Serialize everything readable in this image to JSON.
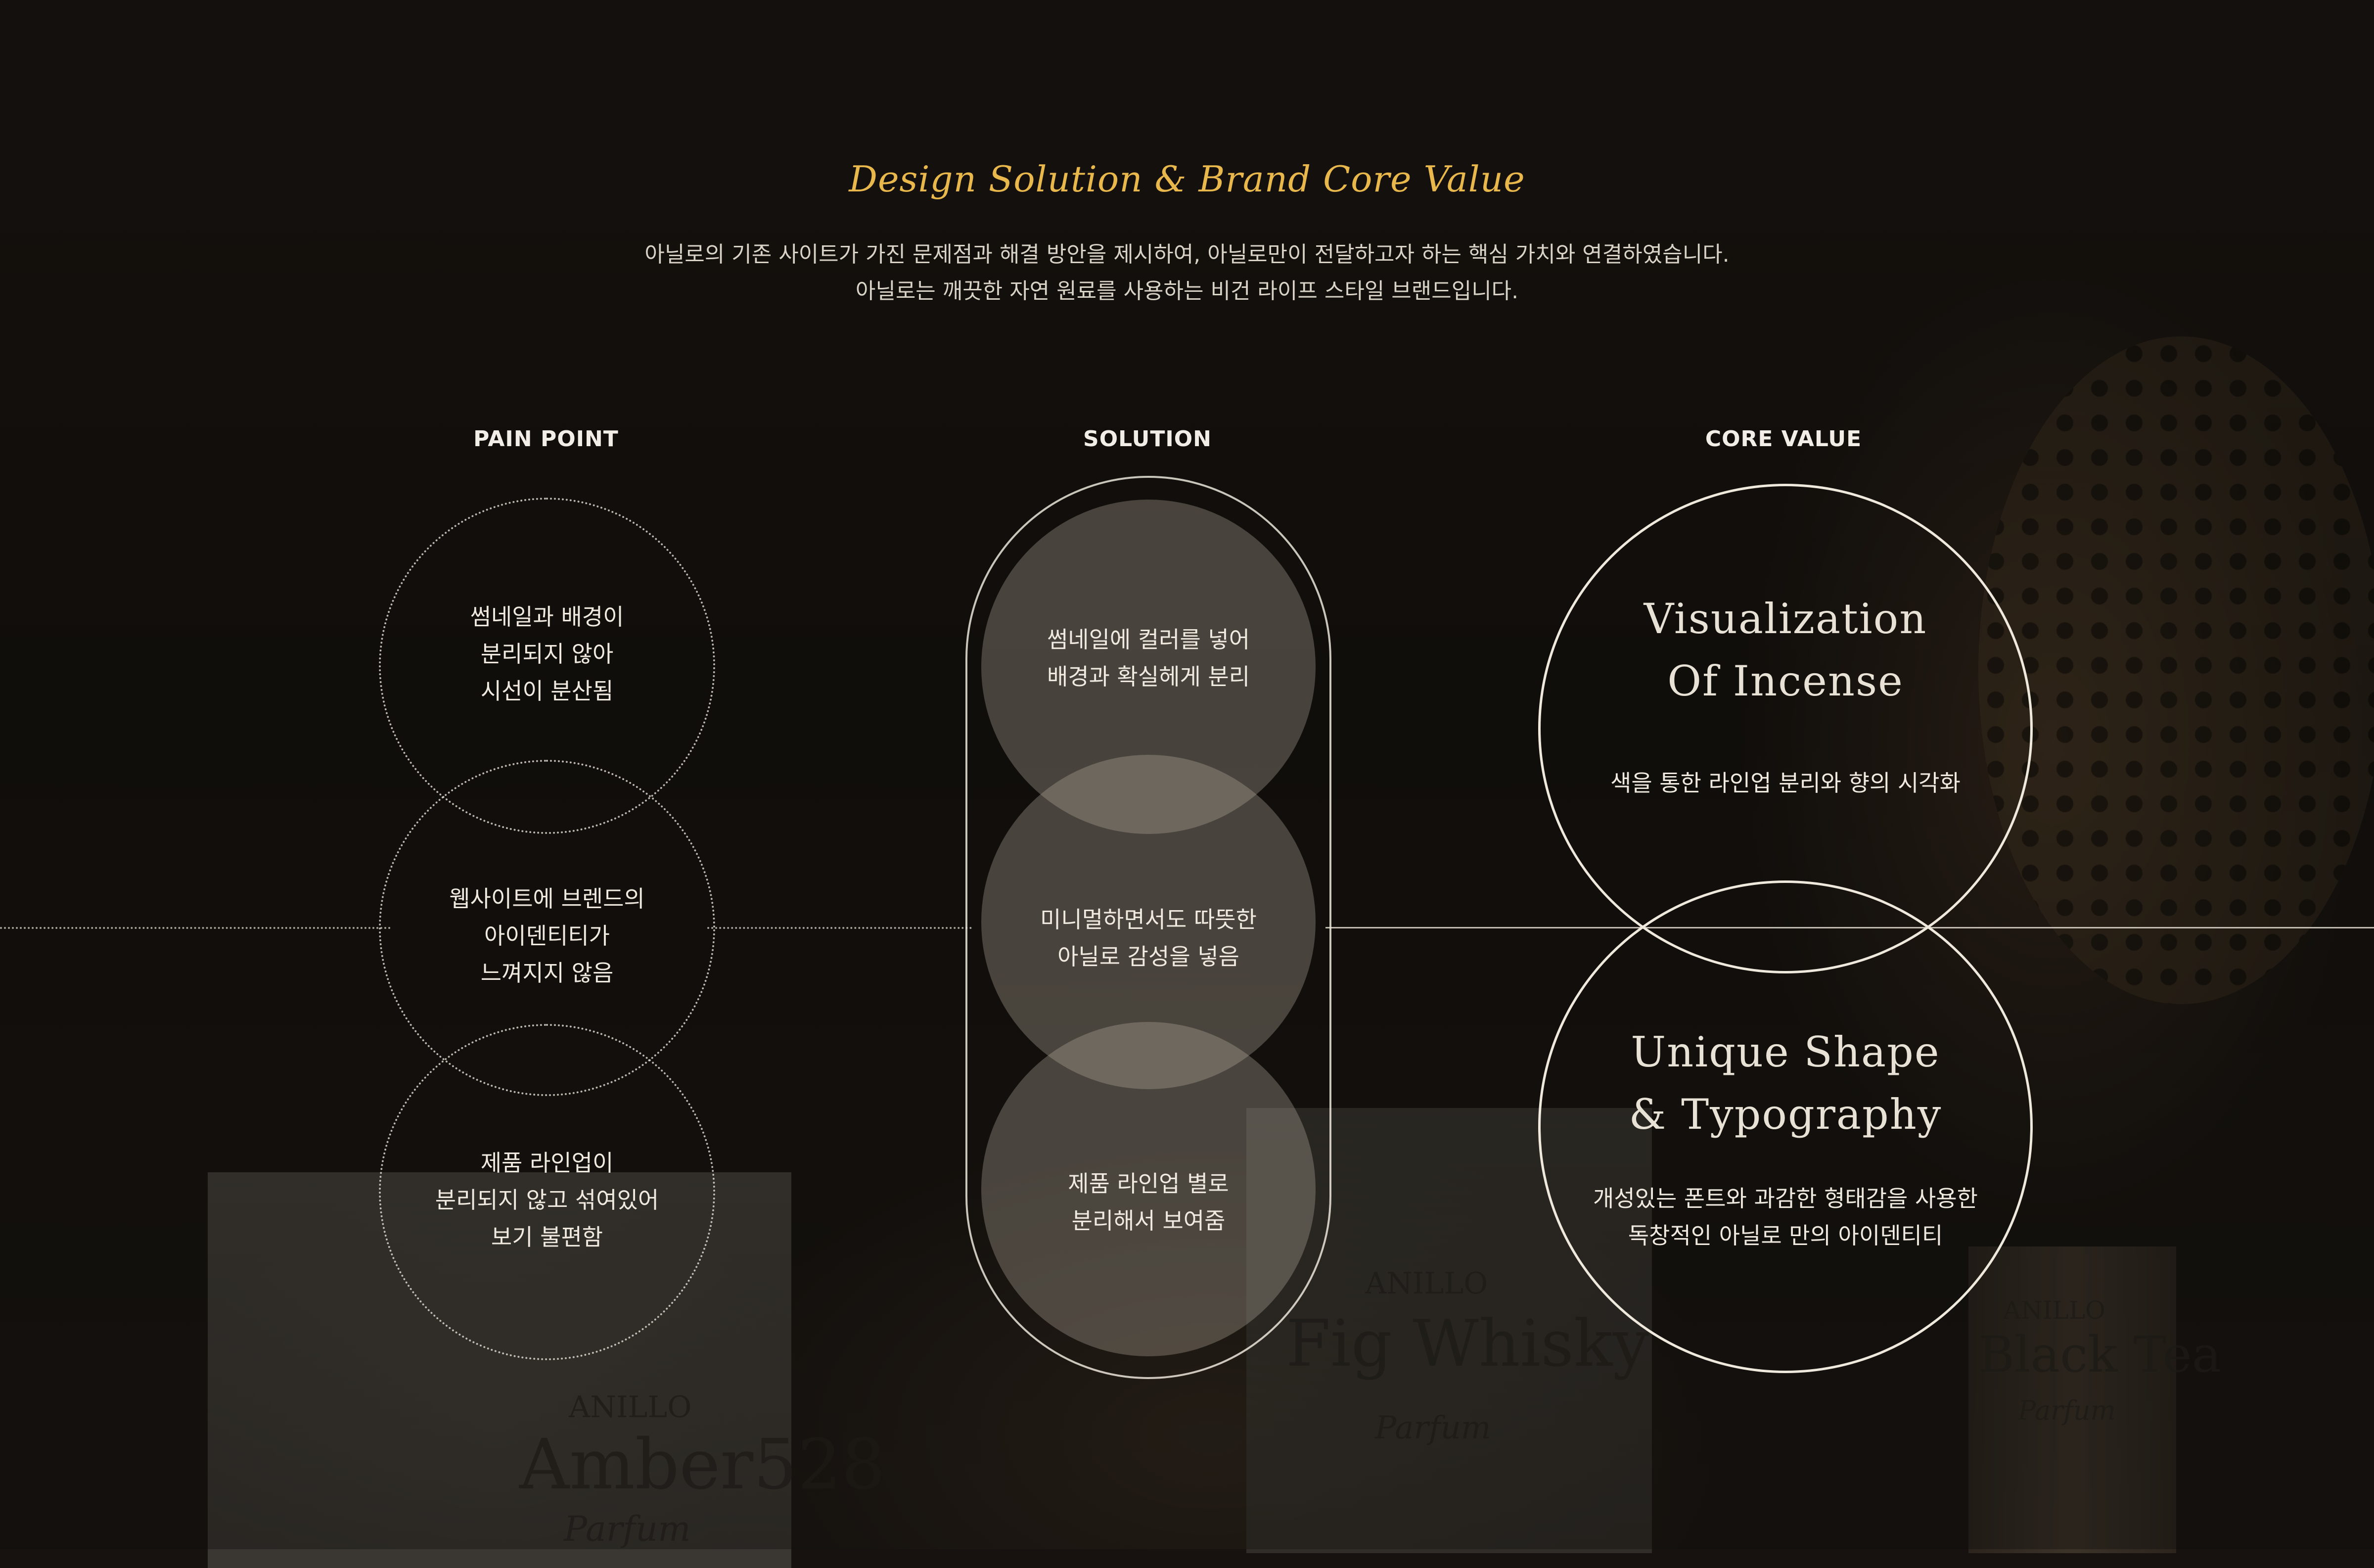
{
  "header": {
    "title": "Design Solution & Brand Core Value",
    "desc_line1": "아닐로의 기존 사이트가 가진 문제점과 해결 방안을 제시하여, 아닐로만이 전달하고자 하는 핵심 가치와 연결하였습니다.",
    "desc_line2": "아닐로는 깨끗한 자연 원료를 사용하는 비건 라이프 스타일 브랜드입니다."
  },
  "columns": {
    "pain_point": {
      "label": "PAIN POINT",
      "items": [
        "썸네일과 배경이\n분리되지 않아\n시선이 분산됨",
        "웹사이트에 브렌드의\n아이덴티티가\n느껴지지 않음",
        "제품 라인업이\n분리되지 않고 섞여있어\n보기 불편함"
      ]
    },
    "solution": {
      "label": "SOLUTION",
      "items": [
        "썸네일에 컬러를 넣어\n배경과 확실헤게 분리",
        "미니멀하면서도 따뜻한\n아닐로 감성을 넣음",
        "제품 라인업 별로\n분리해서 보여줌"
      ]
    },
    "core_value": {
      "label": "CORE VALUE",
      "items": [
        {
          "title": "Visualization\nOf Incense",
          "desc": "색을 통한 라인업 분리와 향의 시각화"
        },
        {
          "title": "Unique Shape\n& Typography",
          "desc": "개성있는 폰트와 과감한 형태감을 사용한\n독창적인 아닐로 만의 아이덴티티"
        }
      ]
    }
  },
  "background_props": {
    "box1_brand": "ANILLO",
    "box1_name": "Amber528",
    "box1_type": "Parfum",
    "box2_brand": "ANILLO",
    "box2_name": "Fig Whisky",
    "box2_type": "Parfum",
    "bottle_brand": "ANILLO",
    "bottle_name": "Black Tea",
    "bottle_type": "Parfum"
  },
  "colors": {
    "background": "#17120f",
    "title_gold": "#e8b84c",
    "text_light": "#efe9df"
  }
}
